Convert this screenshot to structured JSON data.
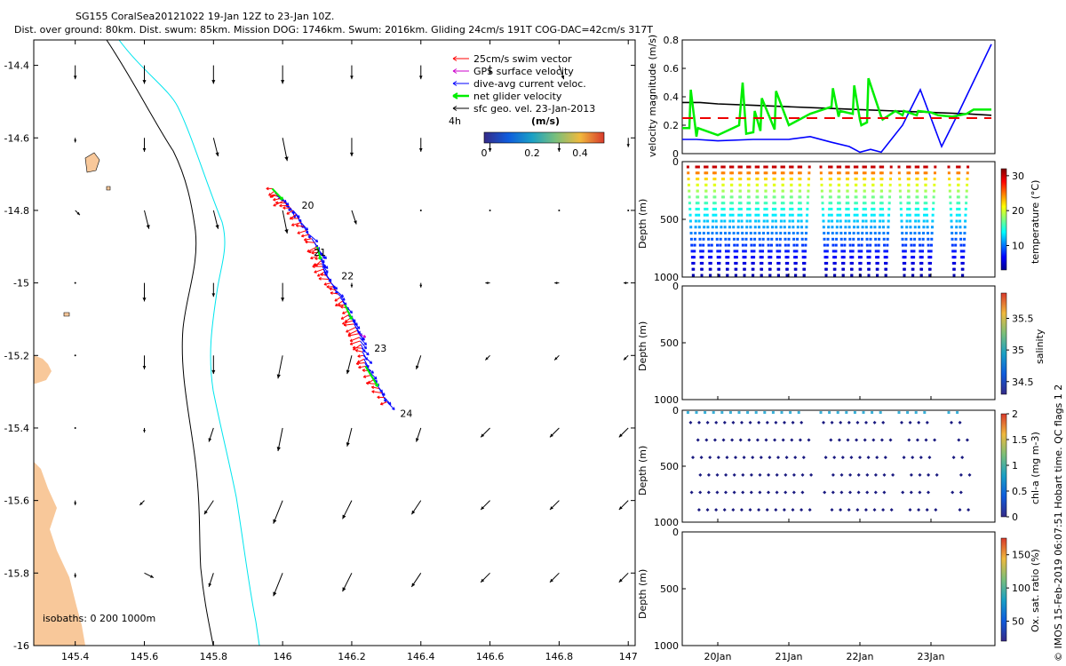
{
  "header": {
    "title_line1": "SG155 CoralSea20121022 19-Jan 12Z to 23-Jan 10Z.",
    "title_line2": "Dist. over ground: 80km. Dist. swum: 85km. Mission DOG: 1746km. Swum: 2016km. Gliding 24cm/s 191T COG-DAC=42cm/s 317T"
  },
  "colors": {
    "coast_contour": "#000000",
    "isobath_200": "#00e5ee",
    "land": "#f8c89a",
    "swim": "#ff0000",
    "gps": "#cc00cc",
    "dac": "#0000ff",
    "net": "#00ee00",
    "geo": "#000000"
  },
  "chart_data": [
    {
      "type": "scatter",
      "name": "map",
      "xlim": [
        145.28,
        147.02
      ],
      "ylim": [
        -16.0,
        -14.33
      ],
      "xticks": [
        "145.4",
        "145.6",
        "145.8",
        "146",
        "146.2",
        "146.4",
        "146.6",
        "146.8",
        "147"
      ],
      "yticks": [
        "-14.4",
        "-14.6",
        "-14.8",
        "-15",
        "-15.2",
        "-15.4",
        "-15.6",
        "-15.8",
        "-16"
      ],
      "xtick_values": [
        145.4,
        145.6,
        145.8,
        146.0,
        146.2,
        146.4,
        146.6,
        146.8,
        147.0
      ],
      "ytick_values": [
        -14.4,
        -14.6,
        -14.8,
        -15.0,
        -15.2,
        -15.4,
        -15.6,
        -15.8,
        -16.0
      ],
      "legend": {
        "position": "top-right",
        "entries": [
          "25cm/s swim vector",
          "GPS surface velocity",
          "dive-avg current veloc.",
          "net glider velocity",
          "sfc geo. vel. 23-Jan-2013"
        ]
      },
      "time_step_label": "4h",
      "colorbar": {
        "label": "(m/s)",
        "ticks": [
          "0",
          "0.2",
          "0.4"
        ],
        "range": [
          0,
          0.5
        ]
      },
      "isobath_label": "isobaths: 0   200  1000m",
      "day_labels": [
        {
          "text": "20",
          "lon": 146.055,
          "lat": -14.795
        },
        {
          "text": "21",
          "lon": 146.09,
          "lat": -14.925
        },
        {
          "text": "22",
          "lon": 146.17,
          "lat": -14.99
        },
        {
          "text": "23",
          "lon": 146.265,
          "lat": -15.19
        },
        {
          "text": "24",
          "lon": 146.34,
          "lat": -15.37
        }
      ],
      "track": [
        {
          "lon": 145.97,
          "lat": -14.74
        },
        {
          "lon": 146.03,
          "lat": -14.8
        },
        {
          "lon": 146.1,
          "lat": -14.9
        },
        {
          "lon": 146.12,
          "lat": -14.97
        },
        {
          "lon": 146.18,
          "lat": -15.06
        },
        {
          "lon": 146.22,
          "lat": -15.14
        },
        {
          "lon": 146.24,
          "lat": -15.23
        },
        {
          "lon": 146.31,
          "lat": -15.34
        }
      ],
      "geo_vectors": {
        "lons": [
          145.4,
          145.6,
          145.8,
          146.0,
          146.2,
          146.4,
          146.6,
          146.8,
          147.0
        ],
        "lats": [
          -14.4,
          -14.6,
          -14.8,
          -15.0,
          -15.2,
          -15.4,
          -15.6,
          -15.8,
          -16.0
        ],
        "u": [
          [
            0,
            0,
            0,
            0,
            0,
            0,
            0,
            0.01,
            null
          ],
          [
            0,
            0,
            0.01,
            0.01,
            0,
            0,
            0,
            0,
            0
          ],
          [
            0.01,
            0.01,
            0.01,
            0.01,
            0.01,
            0,
            0,
            0,
            0
          ],
          [
            0,
            0,
            0,
            0,
            0,
            0,
            -0.01,
            -0.01,
            -0.01
          ],
          [
            0,
            0,
            0,
            -0.01,
            -0.01,
            -0.01,
            -0.01,
            -0.01,
            -0.01
          ],
          [
            0,
            0,
            -0.01,
            -0.01,
            -0.01,
            -0.01,
            -0.02,
            -0.02,
            -0.02
          ],
          [
            0,
            -0.01,
            -0.02,
            -0.02,
            -0.02,
            -0.02,
            -0.02,
            -0.02,
            -0.02
          ],
          [
            0,
            0.02,
            -0.01,
            -0.02,
            -0.02,
            -0.02,
            -0.02,
            -0.02,
            -0.02
          ],
          [
            0,
            0.02,
            null,
            null,
            null,
            null,
            null,
            null,
            null
          ]
        ],
        "v": [
          [
            -0.03,
            -0.04,
            -0.04,
            -0.04,
            -0.03,
            -0.03,
            -0.02,
            -0.03,
            null
          ],
          [
            -0.01,
            -0.03,
            -0.04,
            -0.05,
            -0.04,
            -0.03,
            -0.03,
            -0.03,
            -0.02
          ],
          [
            -0.01,
            -0.04,
            -0.04,
            -0.05,
            -0.03,
            0,
            0,
            0,
            0
          ],
          [
            0,
            -0.04,
            -0.03,
            -0.04,
            -0.01,
            -0.01,
            0,
            0,
            0
          ],
          [
            0,
            -0.03,
            -0.04,
            -0.05,
            -0.04,
            -0.03,
            -0.01,
            -0.01,
            -0.01
          ],
          [
            0,
            -0.01,
            -0.03,
            -0.05,
            -0.04,
            -0.03,
            -0.02,
            -0.02,
            -0.02
          ],
          [
            -0.01,
            -0.01,
            -0.03,
            -0.05,
            -0.04,
            -0.03,
            -0.02,
            -0.02,
            -0.02
          ],
          [
            -0.01,
            -0.01,
            -0.03,
            -0.05,
            -0.04,
            -0.03,
            -0.02,
            -0.02,
            -0.02
          ],
          [
            0,
            -0.01,
            null,
            null,
            null,
            null,
            null,
            null,
            null
          ]
        ]
      }
    },
    {
      "type": "line",
      "name": "velocity",
      "ylabel": "velocity magnitude (m/s)",
      "ylim": [
        0,
        0.8
      ],
      "yticks": [
        "0",
        "0.2",
        "0.4",
        "0.6",
        "0.8"
      ],
      "ytick_values": [
        0,
        0.2,
        0.4,
        0.6,
        0.8
      ],
      "xlim": [
        19.5,
        23.9
      ],
      "series": [
        {
          "color": "#000000",
          "x": [
            19.5,
            19.75,
            20.0,
            20.5,
            21.0,
            21.5,
            22.0,
            22.5,
            23.0,
            23.5,
            23.85
          ],
          "y": [
            0.36,
            0.36,
            0.35,
            0.34,
            0.33,
            0.32,
            0.31,
            0.3,
            0.29,
            0.28,
            0.27
          ]
        },
        {
          "color": "#0000ff",
          "x": [
            19.5,
            19.7,
            20.0,
            20.5,
            21.0,
            21.3,
            21.6,
            21.85,
            22.0,
            22.15,
            22.3,
            22.6,
            22.85,
            23.15,
            23.4,
            23.85
          ],
          "y": [
            0.1,
            0.1,
            0.09,
            0.1,
            0.1,
            0.12,
            0.08,
            0.05,
            0.01,
            0.03,
            0.01,
            0.2,
            0.45,
            0.05,
            0.3,
            0.77
          ]
        },
        {
          "color": "#00ee00",
          "x": [
            19.5,
            19.6,
            19.62,
            19.7,
            19.72,
            20.0,
            20.3,
            20.35,
            20.4,
            20.5,
            20.52,
            20.6,
            20.62,
            20.8,
            20.82,
            21.0,
            21.3,
            21.6,
            21.62,
            21.7,
            21.72,
            21.9,
            21.92,
            22.0,
            22.02,
            22.1,
            22.12,
            22.3,
            22.32,
            22.5,
            22.6,
            22.62,
            22.8,
            22.82,
            23.0,
            23.1,
            23.3,
            23.5,
            23.6,
            23.85
          ],
          "y": [
            0.18,
            0.18,
            0.45,
            0.12,
            0.18,
            0.13,
            0.2,
            0.5,
            0.14,
            0.15,
            0.3,
            0.16,
            0.39,
            0.17,
            0.44,
            0.2,
            0.28,
            0.33,
            0.46,
            0.26,
            0.3,
            0.28,
            0.48,
            0.24,
            0.2,
            0.22,
            0.53,
            0.26,
            0.24,
            0.3,
            0.27,
            0.3,
            0.27,
            0.3,
            0.29,
            0.27,
            0.26,
            0.28,
            0.31,
            0.31
          ]
        },
        {
          "color": "#ee0000",
          "dashed": true,
          "x": [
            19.5,
            23.85
          ],
          "y": [
            0.25,
            0.25
          ]
        }
      ]
    },
    {
      "type": "scatter",
      "name": "temperature",
      "ylabel": "Depth (m)",
      "yticks": [
        "0",
        "500",
        "1000"
      ],
      "ytick_values": [
        0,
        500,
        1000
      ],
      "ylim": [
        1000,
        0
      ],
      "colorbar": {
        "label": "temperature (°C)",
        "ticks": [
          "10",
          "20",
          "30"
        ],
        "tick_values": [
          10,
          20,
          30
        ],
        "range": [
          3,
          32
        ]
      },
      "dive_times": [
        19.58,
        19.7,
        19.82,
        19.94,
        20.06,
        20.18,
        20.3,
        20.42,
        20.54,
        20.66,
        20.78,
        20.9,
        21.02,
        21.14,
        21.45,
        21.57,
        21.69,
        21.81,
        21.93,
        22.05,
        22.17,
        22.29,
        22.55,
        22.67,
        22.79,
        22.91,
        23.25,
        23.37
      ]
    },
    {
      "type": "scatter",
      "name": "salinity",
      "ylabel": "Depth (m)",
      "yticks": [
        "0",
        "500",
        "1000"
      ],
      "ytick_values": [
        0,
        500,
        1000
      ],
      "ylim": [
        1000,
        0
      ],
      "colorbar": {
        "label": "salinity",
        "ticks": [
          "34.5",
          "35",
          "35.5"
        ],
        "tick_values": [
          34.5,
          35.0,
          35.5
        ],
        "range": [
          34.3,
          35.9
        ]
      }
    },
    {
      "type": "scatter",
      "name": "chl-a",
      "ylabel": "Depth (m)",
      "yticks": [
        "0",
        "500",
        "1000"
      ],
      "ytick_values": [
        0,
        500,
        1000
      ],
      "ylim": [
        1000,
        0
      ],
      "colorbar": {
        "label": "chl-a (mg m-3)",
        "ticks": [
          "0",
          "0.5",
          "1",
          "1.5",
          "2"
        ],
        "tick_values": [
          0,
          0.5,
          1.0,
          1.5,
          2.0
        ],
        "range": [
          0,
          2.0
        ]
      }
    },
    {
      "type": "scatter",
      "name": "oxygen",
      "ylabel": "Depth (m)",
      "yticks": [
        "0",
        "500",
        "1000"
      ],
      "ytick_values": [
        0,
        500,
        1000
      ],
      "ylim": [
        1000,
        0
      ],
      "xlim": [
        19.5,
        23.9
      ],
      "xticks": [
        "20Jan",
        "21Jan",
        "22Jan",
        "23Jan"
      ],
      "xtick_values": [
        20,
        21,
        22,
        23
      ],
      "colorbar": {
        "label": "Ox. sat. ratio (%)",
        "ticks": [
          "50",
          "100",
          "150"
        ],
        "tick_values": [
          50,
          100,
          150
        ],
        "range": [
          20,
          175
        ]
      }
    }
  ],
  "credit": "© IMOS 15-Feb-2019 06:07:51 Hobart time. QC flags 1  2"
}
